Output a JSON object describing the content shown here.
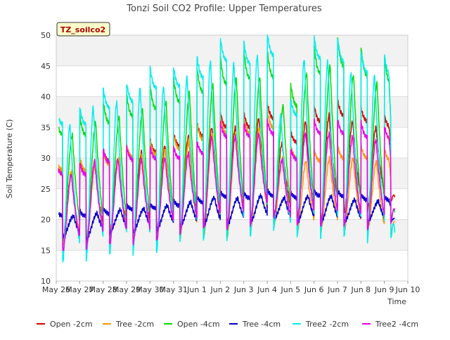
{
  "chart_data": {
    "type": "line",
    "title": "Tonzi Soil CO2 Profile: Upper Temperatures",
    "site_label": "TZ_soilco2",
    "xlabel": "Time",
    "ylabel": "Soil Temperature (C)",
    "ylim": [
      10,
      50
    ],
    "yticks": [
      10,
      15,
      20,
      25,
      30,
      35,
      40,
      45,
      50
    ],
    "xlim": [
      0,
      15
    ],
    "xticks": [
      {
        "x": 0,
        "label": "May 26"
      },
      {
        "x": 1,
        "label": "May 27"
      },
      {
        "x": 2,
        "label": "May 28"
      },
      {
        "x": 3,
        "label": "May 29"
      },
      {
        "x": 4,
        "label": "May 30"
      },
      {
        "x": 5,
        "label": "May 31"
      },
      {
        "x": 6,
        "label": "Jun 1"
      },
      {
        "x": 7,
        "label": "Jun 2"
      },
      {
        "x": 8,
        "label": "Jun 3"
      },
      {
        "x": 9,
        "label": "Jun 4"
      },
      {
        "x": 10,
        "label": "Jun 5"
      },
      {
        "x": 11,
        "label": "Jun 6"
      },
      {
        "x": 12,
        "label": "Jun 7"
      },
      {
        "x": 13,
        "label": "Jun 8"
      },
      {
        "x": 14,
        "label": "Jun 9"
      },
      {
        "x": 15,
        "label": "Jun 10"
      }
    ],
    "grid": "horizontal bands",
    "legend_position": "bottom",
    "x_unit_note": "days",
    "series": [
      {
        "name": "Open -2cm",
        "color": "#dd0000",
        "daily_min": [
          16.5,
          15.5,
          17.5,
          17.5,
          17.8,
          18.5,
          19.0,
          19.0,
          19.5,
          20.5,
          20.0,
          19.5,
          21.0,
          21.5,
          22.5
        ],
        "daily_max": [
          27.5,
          29.5,
          30.0,
          31.0,
          32.0,
          33.5,
          35.0,
          35.0,
          36.5,
          32.5,
          36.0,
          37.0,
          36.0,
          35.0,
          35.0
        ],
        "peak_hour": 15.5,
        "end_value": 23.5
      },
      {
        "name": "Tree -2cm",
        "color": "#ff9900",
        "daily_min": [
          15.8,
          15.5,
          16.5,
          16.5,
          16.5,
          17.0,
          17.0,
          17.0,
          18.0,
          19.0,
          18.0,
          18.0,
          18.0,
          18.0,
          17.0
        ],
        "daily_max": [
          28.0,
          29.0,
          30.0,
          30.5,
          31.5,
          33.0,
          34.0,
          34.0,
          35.0,
          30.0,
          29.5,
          30.0,
          30.0,
          29.5,
          29.5
        ],
        "peak_hour": 16.0,
        "end_value": 19.5
      },
      {
        "name": "Open -4cm",
        "color": "#00dd00",
        "daily_min": [
          16.5,
          16.5,
          16.5,
          16.5,
          16.5,
          17.0,
          17.0,
          17.0,
          18.0,
          19.0,
          18.5,
          18.0,
          18.5,
          18.5,
          19.0
        ],
        "daily_max": [
          33.8,
          35.8,
          36.8,
          38.0,
          39.2,
          40.7,
          42.0,
          43.0,
          43.2,
          38.5,
          43.8,
          45.0,
          43.5,
          42.2,
          42.2
        ],
        "peak_hour": 16.5,
        "end_value": 21.0
      },
      {
        "name": "Tree -4cm",
        "color": "#0000cc",
        "daily_min": [
          17.2,
          16.8,
          17.8,
          18.0,
          18.3,
          18.8,
          19.0,
          19.0,
          19.5,
          20.0,
          19.5,
          19.5,
          19.5,
          19.5,
          19.5
        ],
        "daily_max": [
          20.6,
          21.0,
          21.6,
          21.8,
          22.3,
          22.8,
          23.6,
          23.5,
          23.9,
          23.5,
          23.8,
          23.8,
          23.2,
          23.0,
          22.6
        ],
        "peak_hour": 18.0,
        "end_value": 20.2
      },
      {
        "name": "Tree2 -2cm",
        "color": "#00eeee",
        "daily_min": [
          13.0,
          13.3,
          14.2,
          14.5,
          14.5,
          16.5,
          16.5,
          16.8,
          17.0,
          18.5,
          17.0,
          17.0,
          17.0,
          16.5,
          16.5
        ],
        "daily_max": [
          35.5,
          38.3,
          39.2,
          41.4,
          41.7,
          43.2,
          45.9,
          45.4,
          46.8,
          37.0,
          46.2,
          45.8,
          44.0,
          43.4,
          43.4
        ],
        "peak_hour": 14.0,
        "end_value": 17.5
      },
      {
        "name": "Tree2 -4cm",
        "color": "#ee00ee",
        "daily_min": [
          14.8,
          15.3,
          16.0,
          16.2,
          16.5,
          17.8,
          18.5,
          18.5,
          19.0,
          20.5,
          19.0,
          19.0,
          19.0,
          18.5,
          18.5
        ],
        "daily_max": [
          27.3,
          29.4,
          29.7,
          29.8,
          30.0,
          30.8,
          33.5,
          33.5,
          34.0,
          29.8,
          34.0,
          34.0,
          33.5,
          33.0,
          33.0
        ],
        "peak_hour": 15.5,
        "end_value": 21.5
      }
    ]
  }
}
